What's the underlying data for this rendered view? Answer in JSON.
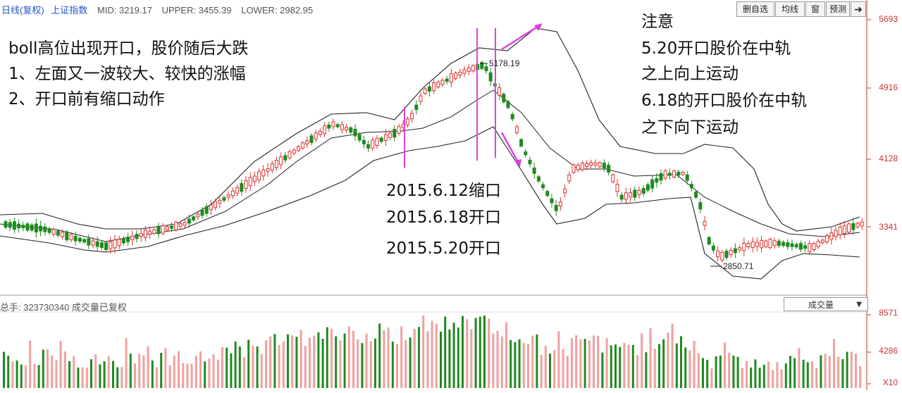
{
  "header": {
    "title": "日线(复权)",
    "symbol": "上证指数",
    "mid_label": "MID: 3219.17",
    "upper_label": "UPPER: 3455.39",
    "lower_label": "LOWER: 2982.95"
  },
  "toolbar": {
    "buttons": [
      "删自选",
      "均线",
      "窗",
      "预测"
    ],
    "arrow_icon": "right-arrow-icon"
  },
  "annotations": {
    "left_lines": [
      "boll高位出现开口，股价随后大跌",
      "1、左面又一波较大、较快的涨幅",
      "2、开口前有缩口动作"
    ],
    "center_lines": [
      "2015.6.12缩口",
      "2015.6.18开口",
      "2015.5.20开口"
    ],
    "right_lines": [
      "注意",
      "5.20开口股价在中轨",
      "之上向上运动",
      "6.18的开口股价在中轨",
      "之下向下运动"
    ]
  },
  "volume": {
    "label": "总手: 323730340 成交量已复权",
    "dropdown": "成交量",
    "axis_labels": [
      "8571",
      "4286",
      "X10"
    ]
  },
  "chart_data": {
    "type": "candlestick_bollinger",
    "price_axis_ticks": [
      5693,
      4916,
      4128,
      3341
    ],
    "high_label": "5178.19",
    "low_label": "2850.71",
    "indicator": {
      "mid": 3219.17,
      "upper": 3455.39,
      "lower": 2982.95
    },
    "colors": {
      "up": "#e03030",
      "down": "#1f8a1f",
      "band": "#222222",
      "marker": "#e040e0"
    }
  }
}
